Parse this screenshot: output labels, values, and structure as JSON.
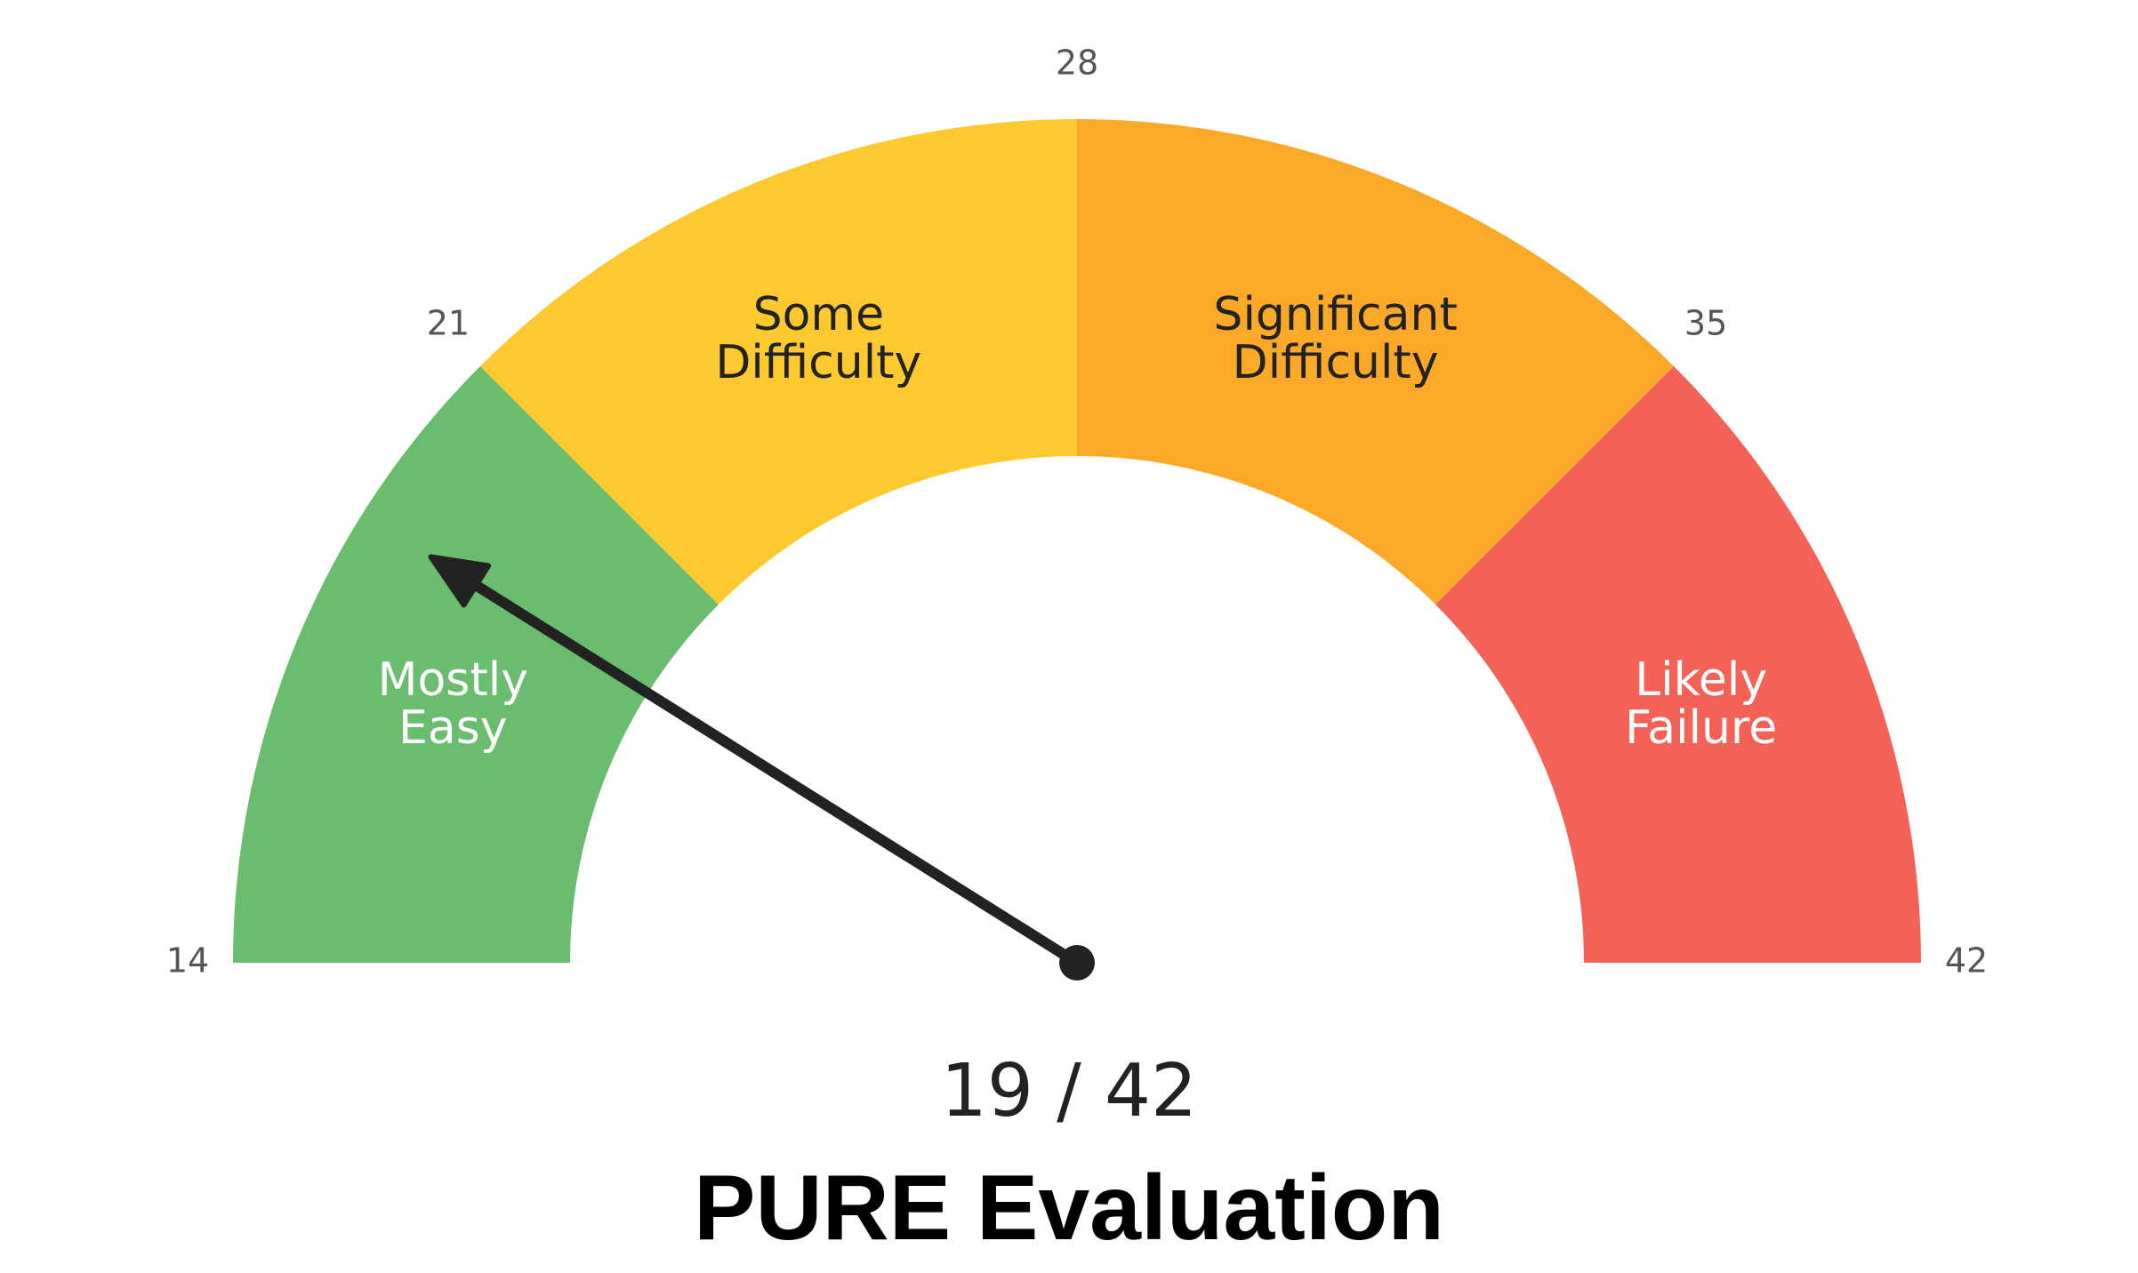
{
  "chart_data": {
    "type": "gauge",
    "title": "PURE Evaluation",
    "range": [
      14,
      42
    ],
    "ticks": [
      14,
      21,
      28,
      35,
      42
    ],
    "bands": [
      {
        "name": "Mostly Easy",
        "from": 14,
        "to": 21,
        "color": "#6abd6e",
        "label_color": "#ffffff"
      },
      {
        "name": "Some Difficulty",
        "from": 21,
        "to": 28,
        "color": "#fdc92f",
        "label_color": "#222222"
      },
      {
        "name": "Significant Difficulty",
        "from": 28,
        "to": 35,
        "color": "#fca92a",
        "label_color": "#222222"
      },
      {
        "name": "Likely Failure",
        "from": 35,
        "to": 42,
        "color": "#f46257",
        "label_color": "#ffffff"
      }
    ],
    "value": 19,
    "value_label": "19 / 42",
    "needle_color": "#222222"
  }
}
